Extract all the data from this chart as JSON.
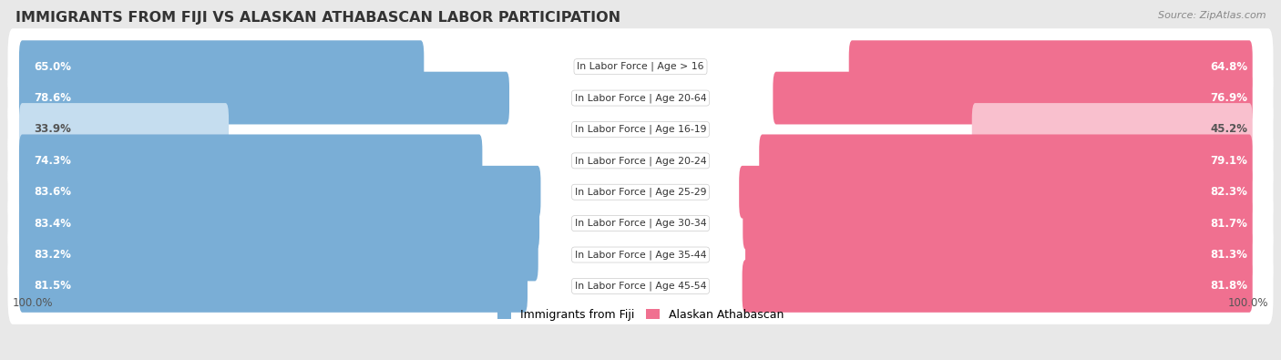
{
  "title": "IMMIGRANTS FROM FIJI VS ALASKAN ATHABASCAN LABOR PARTICIPATION",
  "source": "Source: ZipAtlas.com",
  "categories": [
    "In Labor Force | Age > 16",
    "In Labor Force | Age 20-64",
    "In Labor Force | Age 16-19",
    "In Labor Force | Age 20-24",
    "In Labor Force | Age 25-29",
    "In Labor Force | Age 30-34",
    "In Labor Force | Age 35-44",
    "In Labor Force | Age 45-54"
  ],
  "fiji_values": [
    65.0,
    78.6,
    33.9,
    74.3,
    83.6,
    83.4,
    83.2,
    81.5
  ],
  "alaska_values": [
    64.8,
    76.9,
    45.2,
    79.1,
    82.3,
    81.7,
    81.3,
    81.8
  ],
  "fiji_color": "#7aaed6",
  "alaska_color": "#f07090",
  "fiji_color_light": "#c5ddef",
  "alaska_color_light": "#f9c0ce",
  "bg_color": "#e8e8e8",
  "row_bg": "#f5f5f5",
  "max_val": 100.0,
  "bar_height": 0.68,
  "title_fontsize": 11.5,
  "label_fontsize": 8.0
}
